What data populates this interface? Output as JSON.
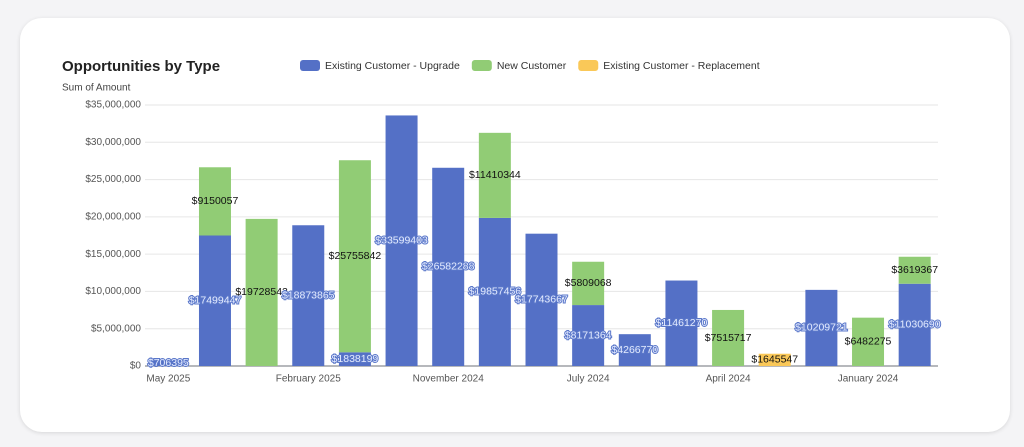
{
  "chart_data": {
    "type": "bar",
    "stacked": true,
    "title": "Opportunities by Type",
    "y_axis_label": "Sum of Amount",
    "categories": [
      "May 2025",
      null,
      null,
      "February 2025",
      null,
      null,
      "November 2024",
      null,
      null,
      "July 2024",
      null,
      null,
      "April 2024",
      null,
      null,
      "January 2024",
      null
    ],
    "series": [
      {
        "name": "Existing Customer - Upgrade",
        "color": "#5470c6",
        "values": [
          706395,
          17499447,
          null,
          18873865,
          1838199,
          33599403,
          26582288,
          19857456,
          17743667,
          8171364,
          4266770,
          11461270,
          null,
          null,
          10209721,
          null,
          11030690
        ],
        "value_labels": [
          "$706395",
          "$17499447",
          null,
          "$18873865",
          "$1838199",
          "$33599403",
          "$26582288",
          "$19857456",
          "$17743667",
          "$8171364",
          "$4266770",
          "$11461270",
          null,
          null,
          "$10209721",
          null,
          "$11030690"
        ]
      },
      {
        "name": "New Customer",
        "color": "#91cc75",
        "values": [
          null,
          9150057,
          19728542,
          null,
          25755842,
          null,
          null,
          11410344,
          null,
          5809068,
          null,
          null,
          7515717,
          null,
          null,
          6482275,
          3619367
        ],
        "value_labels": [
          null,
          "$9150057",
          "$19728542",
          null,
          "$25755842",
          null,
          null,
          "$11410344",
          null,
          "$5809068",
          null,
          null,
          "$7515717",
          null,
          null,
          "$6482275",
          "$3619367"
        ]
      },
      {
        "name": "Existing Customer - Replacement",
        "color": "#fac858",
        "values": [
          null,
          null,
          null,
          null,
          null,
          null,
          null,
          null,
          null,
          null,
          null,
          null,
          null,
          1645547,
          null,
          null,
          null
        ],
        "value_labels": [
          null,
          null,
          null,
          null,
          null,
          null,
          null,
          null,
          null,
          null,
          null,
          null,
          null,
          "$1645547",
          null,
          null,
          null
        ]
      }
    ],
    "ylim": [
      0,
      35000000
    ],
    "yticks": [
      {
        "value": 0,
        "label": "$0"
      },
      {
        "value": 5000000,
        "label": "$5,000,000"
      },
      {
        "value": 10000000,
        "label": "$10,000,000"
      },
      {
        "value": 15000000,
        "label": "$15,000,000"
      },
      {
        "value": 20000000,
        "label": "$20,000,000"
      },
      {
        "value": 25000000,
        "label": "$25,000,000"
      },
      {
        "value": 30000000,
        "label": "$30,000,000"
      },
      {
        "value": 35000000,
        "label": "$35,000,000"
      }
    ],
    "grid": true
  }
}
